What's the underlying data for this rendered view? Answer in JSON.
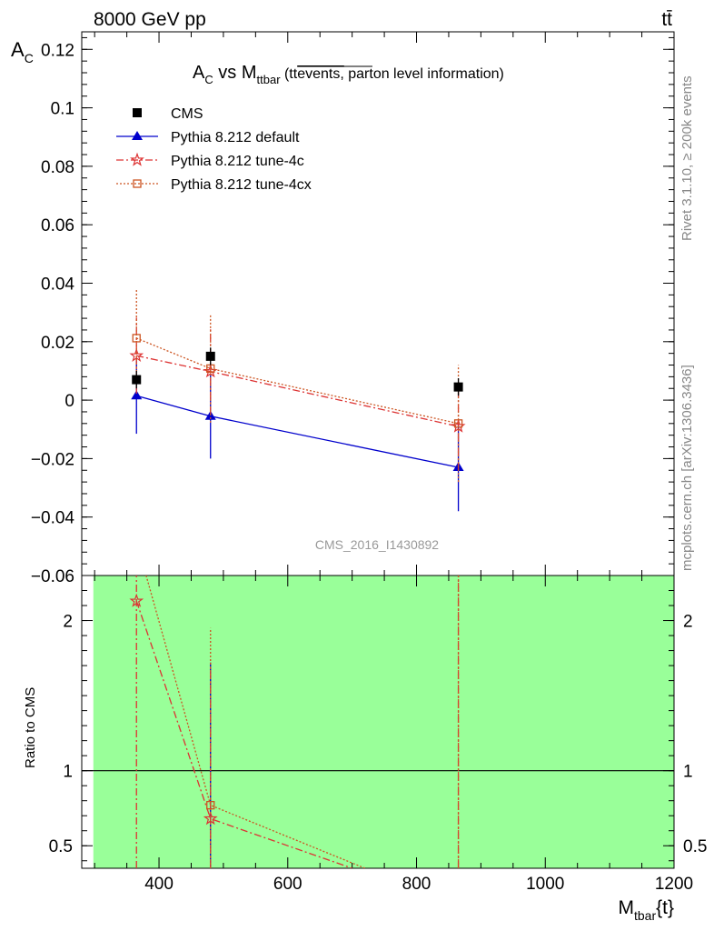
{
  "header": {
    "energy_label": "8000 GeV pp",
    "process_label": "tt̄"
  },
  "side_labels": {
    "rivet": "Rivet 3.1.10, ≥ 200k events",
    "mcplots": "mcplots.cern.ch [arXiv:1306.3436]"
  },
  "chart_data": [
    {
      "type": "scatter",
      "title": "A_C vs M_ttbar (tt events, parton level information)",
      "title_parts": {
        "a": "A",
        "a_sub": "C",
        "vs": " vs M",
        "m_sub": "ttbar",
        "paren_open": " (tt",
        "overline": "events,",
        "rest": " parton level information)"
      },
      "ylabel": "A",
      "ylabel_sub": "C",
      "xlim": [
        280,
        1200
      ],
      "ylim": [
        -0.06,
        0.126
      ],
      "yticks": [
        -0.04,
        -0.02,
        0,
        0.02,
        0.04,
        0.06,
        0.08,
        0.1,
        0.12
      ],
      "ytick_labels": [
        "−0.04",
        "−0.02",
        "0",
        "0.02",
        "0.04",
        "0.06",
        "0.08",
        "0.1",
        "0.12"
      ],
      "ytick_cut_label": "−0.06",
      "watermark": "CMS_2016_I1430892",
      "legend_position": "top-left",
      "series": [
        {
          "name": "CMS",
          "marker": "square",
          "color": "#000000",
          "x": [
            365,
            480,
            865
          ],
          "y": [
            0.007,
            0.015,
            0.0045
          ],
          "yerr": [
            0.003,
            0.003,
            0.003
          ],
          "xerr": [
            0,
            0,
            0
          ]
        },
        {
          "name": "Pythia 8.212 default",
          "marker": "triangle",
          "color": "#0000cc",
          "line": "solid",
          "x": [
            365,
            480,
            865
          ],
          "y": [
            0.0015,
            -0.0055,
            -0.023
          ],
          "yerr": [
            0.013,
            0.0145,
            0.015
          ]
        },
        {
          "name": "Pythia 8.212 tune-4c",
          "marker": "star",
          "color": "#dd3333",
          "line": "dashdot",
          "x": [
            365,
            480,
            865
          ],
          "y": [
            0.0152,
            0.0098,
            -0.009
          ],
          "yerr": [
            0.013,
            0.0145,
            0.015
          ]
        },
        {
          "name": "Pythia 8.212 tune-4cx",
          "marker": "open-square",
          "color": "#cc5522",
          "line": "dotted",
          "x": [
            365,
            480,
            865
          ],
          "y": [
            0.0212,
            0.0108,
            -0.008
          ],
          "yerr": [
            0.0165,
            0.0185,
            0.02
          ]
        }
      ]
    },
    {
      "type": "line",
      "ylabel": "Ratio to CMS",
      "xlabel": "M",
      "xlabel_sub": "tbar",
      "xlabel_rest": "{t}",
      "xlim": [
        280,
        1200
      ],
      "ylim": [
        0.35,
        2.3
      ],
      "xticks": [
        400,
        600,
        800,
        1000,
        1200
      ],
      "yticks": [
        0.5,
        1,
        2
      ],
      "ytick_labels": [
        "0.5",
        "1",
        "2"
      ],
      "band": {
        "x": [
          298,
          1200
        ],
        "y": [
          0.35,
          2.3
        ],
        "color": "#99ff99"
      },
      "reference_line": 1,
      "series": [
        {
          "name": "Pythia 8.212 default",
          "color": "#0000cc",
          "x": [
            480
          ],
          "y": [
            0.8
          ],
          "err_low": [
            0.35
          ],
          "err_high": [
            1.72
          ]
        },
        {
          "name": "Pythia 8.212 tune-4c",
          "color": "#dd3333",
          "line": "dashdot",
          "x": [
            365,
            480,
            700
          ],
          "y": [
            2.13,
            0.68,
            0.35
          ],
          "vlines": [
            {
              "x": 365,
              "ymin": 0.35,
              "ymax": 2.3
            },
            {
              "x": 480,
              "ymin": 0.35,
              "ymax": 1.72
            },
            {
              "x": 865,
              "ymin": 0.35,
              "ymax": 2.3
            }
          ]
        },
        {
          "name": "Pythia 8.212 tune-4cx",
          "color": "#cc5522",
          "line": "dotted",
          "x": [
            380,
            480,
            720
          ],
          "y": [
            2.3,
            0.77,
            0.35
          ],
          "vlines": [
            {
              "x": 480,
              "ymin": 0.35,
              "ymax": 1.95
            },
            {
              "x": 865,
              "ymin": 0.35,
              "ymax": 2.3
            }
          ]
        }
      ]
    }
  ]
}
